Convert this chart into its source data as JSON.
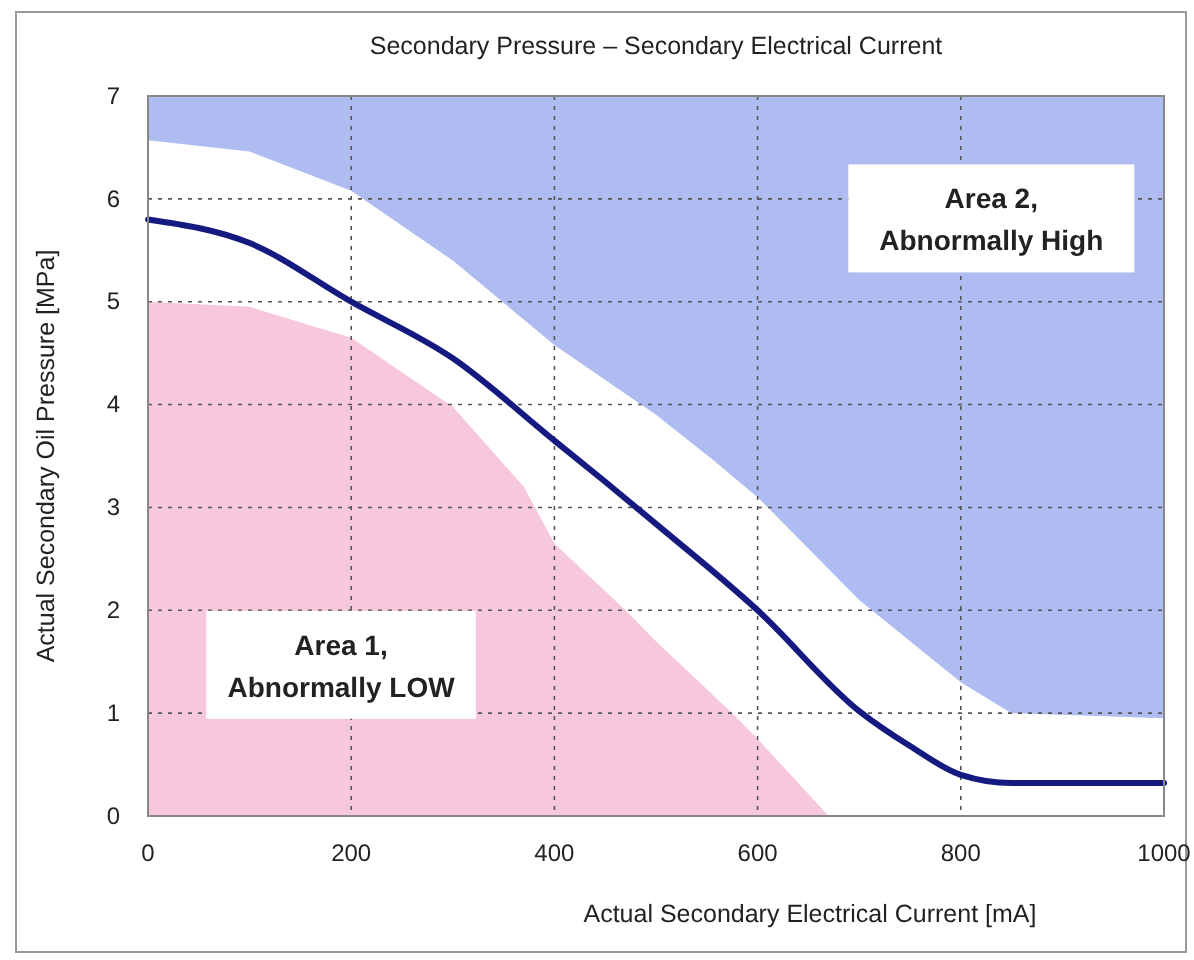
{
  "chart_data": {
    "type": "line",
    "title": "Secondary Pressure – Secondary Electrical Current",
    "xlabel": "Actual Secondary Electrical Current [mA]",
    "ylabel": "Actual Secondary Oil Pressure [MPa]",
    "xlim": [
      0,
      1000
    ],
    "xticks": [
      0,
      200,
      400,
      600,
      800,
      1000
    ],
    "ylim": [
      0,
      7
    ],
    "yticks": [
      0,
      1,
      2,
      3,
      4,
      5,
      6,
      7
    ],
    "grid": true,
    "series": [
      {
        "type": "area",
        "color": "#ffffff",
        "x": [
          0,
          100,
          200,
          300,
          400,
          500,
          555,
          600,
          700,
          800,
          850,
          1000
        ],
        "values": [
          6.57,
          6.46,
          6.08,
          5.4,
          4.58,
          3.9,
          3.47,
          3.1,
          2.1,
          1.3,
          1.0,
          0.95
        ]
      },
      {
        "type": "area",
        "color": "#f7c8dd",
        "x": [
          0,
          100,
          200,
          300,
          370,
          400,
          470,
          500,
          575,
          600,
          670
        ],
        "values": [
          5.0,
          4.95,
          4.65,
          3.98,
          3.2,
          2.65,
          2.0,
          1.7,
          1.0,
          0.75,
          0
        ]
      },
      {
        "color": "#151a80",
        "x": [
          0,
          100,
          200,
          300,
          400,
          450,
          500,
          600,
          700,
          750,
          800,
          850,
          1000
        ],
        "values": [
          5.8,
          5.57,
          5.0,
          4.45,
          3.65,
          3.25,
          2.84,
          2.0,
          1.02,
          0.68,
          0.4,
          0.32,
          0.32
        ]
      }
    ],
    "annotations": [
      "Area 1,\nAbnormally LOW",
      "Area 2,\nAbnormally High"
    ]
  }
}
